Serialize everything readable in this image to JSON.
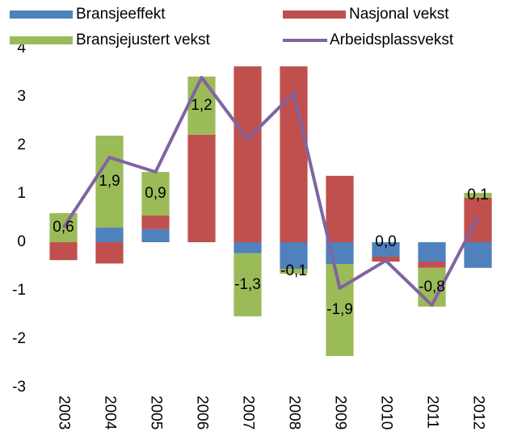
{
  "chart_data": {
    "type": "bar",
    "categories": [
      "2003",
      "2004",
      "2005",
      "2006",
      "2007",
      "2008",
      "2009",
      "2010",
      "2011",
      "2012"
    ],
    "series": [
      {
        "name": "Bransjeeffekt",
        "color": "#4f81bd",
        "values": [
          0,
          0.3,
          0.27,
          0,
          -0.23,
          -0.55,
          -0.45,
          -0.3,
          -0.4,
          -0.53
        ]
      },
      {
        "name": "Nasjonal vekst",
        "color": "#c0504d",
        "values": [
          -0.37,
          -0.44,
          0.28,
          2.22,
          3.63,
          3.63,
          1.37,
          -0.1,
          -0.13,
          0.92
        ]
      },
      {
        "name": "Bransjejustert vekst",
        "color": "#9bbb59",
        "values": [
          0.6,
          1.9,
          0.9,
          1.2,
          -1.3,
          -0.1,
          -1.9,
          0.0,
          -0.8,
          0.1
        ],
        "value_labels": [
          "0,6",
          "1,9",
          "0,9",
          "1,2",
          "-1,3",
          "-0,1",
          "-1,9",
          "0,0",
          "-0,8",
          "0,1"
        ]
      },
      {
        "name": "Arbeidsplassvekst",
        "color": "#8064a2",
        "type": "line",
        "values": [
          0.3,
          1.75,
          1.45,
          3.4,
          2.13,
          3.08,
          -0.95,
          -0.38,
          -1.3,
          0.52
        ]
      }
    ],
    "ylim": [
      -3,
      4
    ],
    "yticks": [
      -3,
      -2,
      -1,
      0,
      1,
      2,
      3,
      4
    ],
    "grid": false
  }
}
